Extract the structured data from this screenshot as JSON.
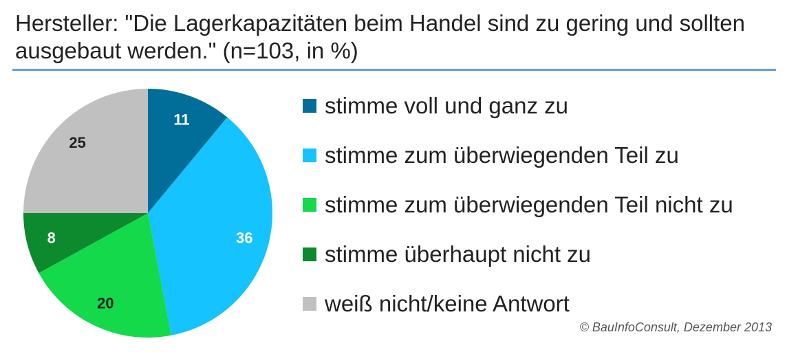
{
  "chart_data": {
    "type": "pie",
    "title": "Hersteller: \"Die Lagerkapazitäten beim Handel sind zu gering und sollten ausgebaut werden.\" (n=103, in %)",
    "slices": [
      {
        "label": "stimme voll und ganz zu",
        "value": 11,
        "color": "#006e99"
      },
      {
        "label": "stimme zum überwiegenden Teil zu",
        "value": 36,
        "color": "#14c3ff"
      },
      {
        "label": "stimme zum überwiegenden Teil nicht zu",
        "value": 20,
        "color": "#14d94b"
      },
      {
        "label": "stimme überhaupt nicht zu",
        "value": 8,
        "color": "#0d8a2e"
      },
      {
        "label": "weiß nicht/keine Antwort",
        "value": 25,
        "color": "#c0c0c0"
      }
    ],
    "label_colors": [
      "#ffffff",
      "#ffffff",
      "#222222",
      "#ffffff",
      "#222222"
    ],
    "legend_position": "right",
    "source": "© BauInfoConsult, Dezember  2013"
  }
}
